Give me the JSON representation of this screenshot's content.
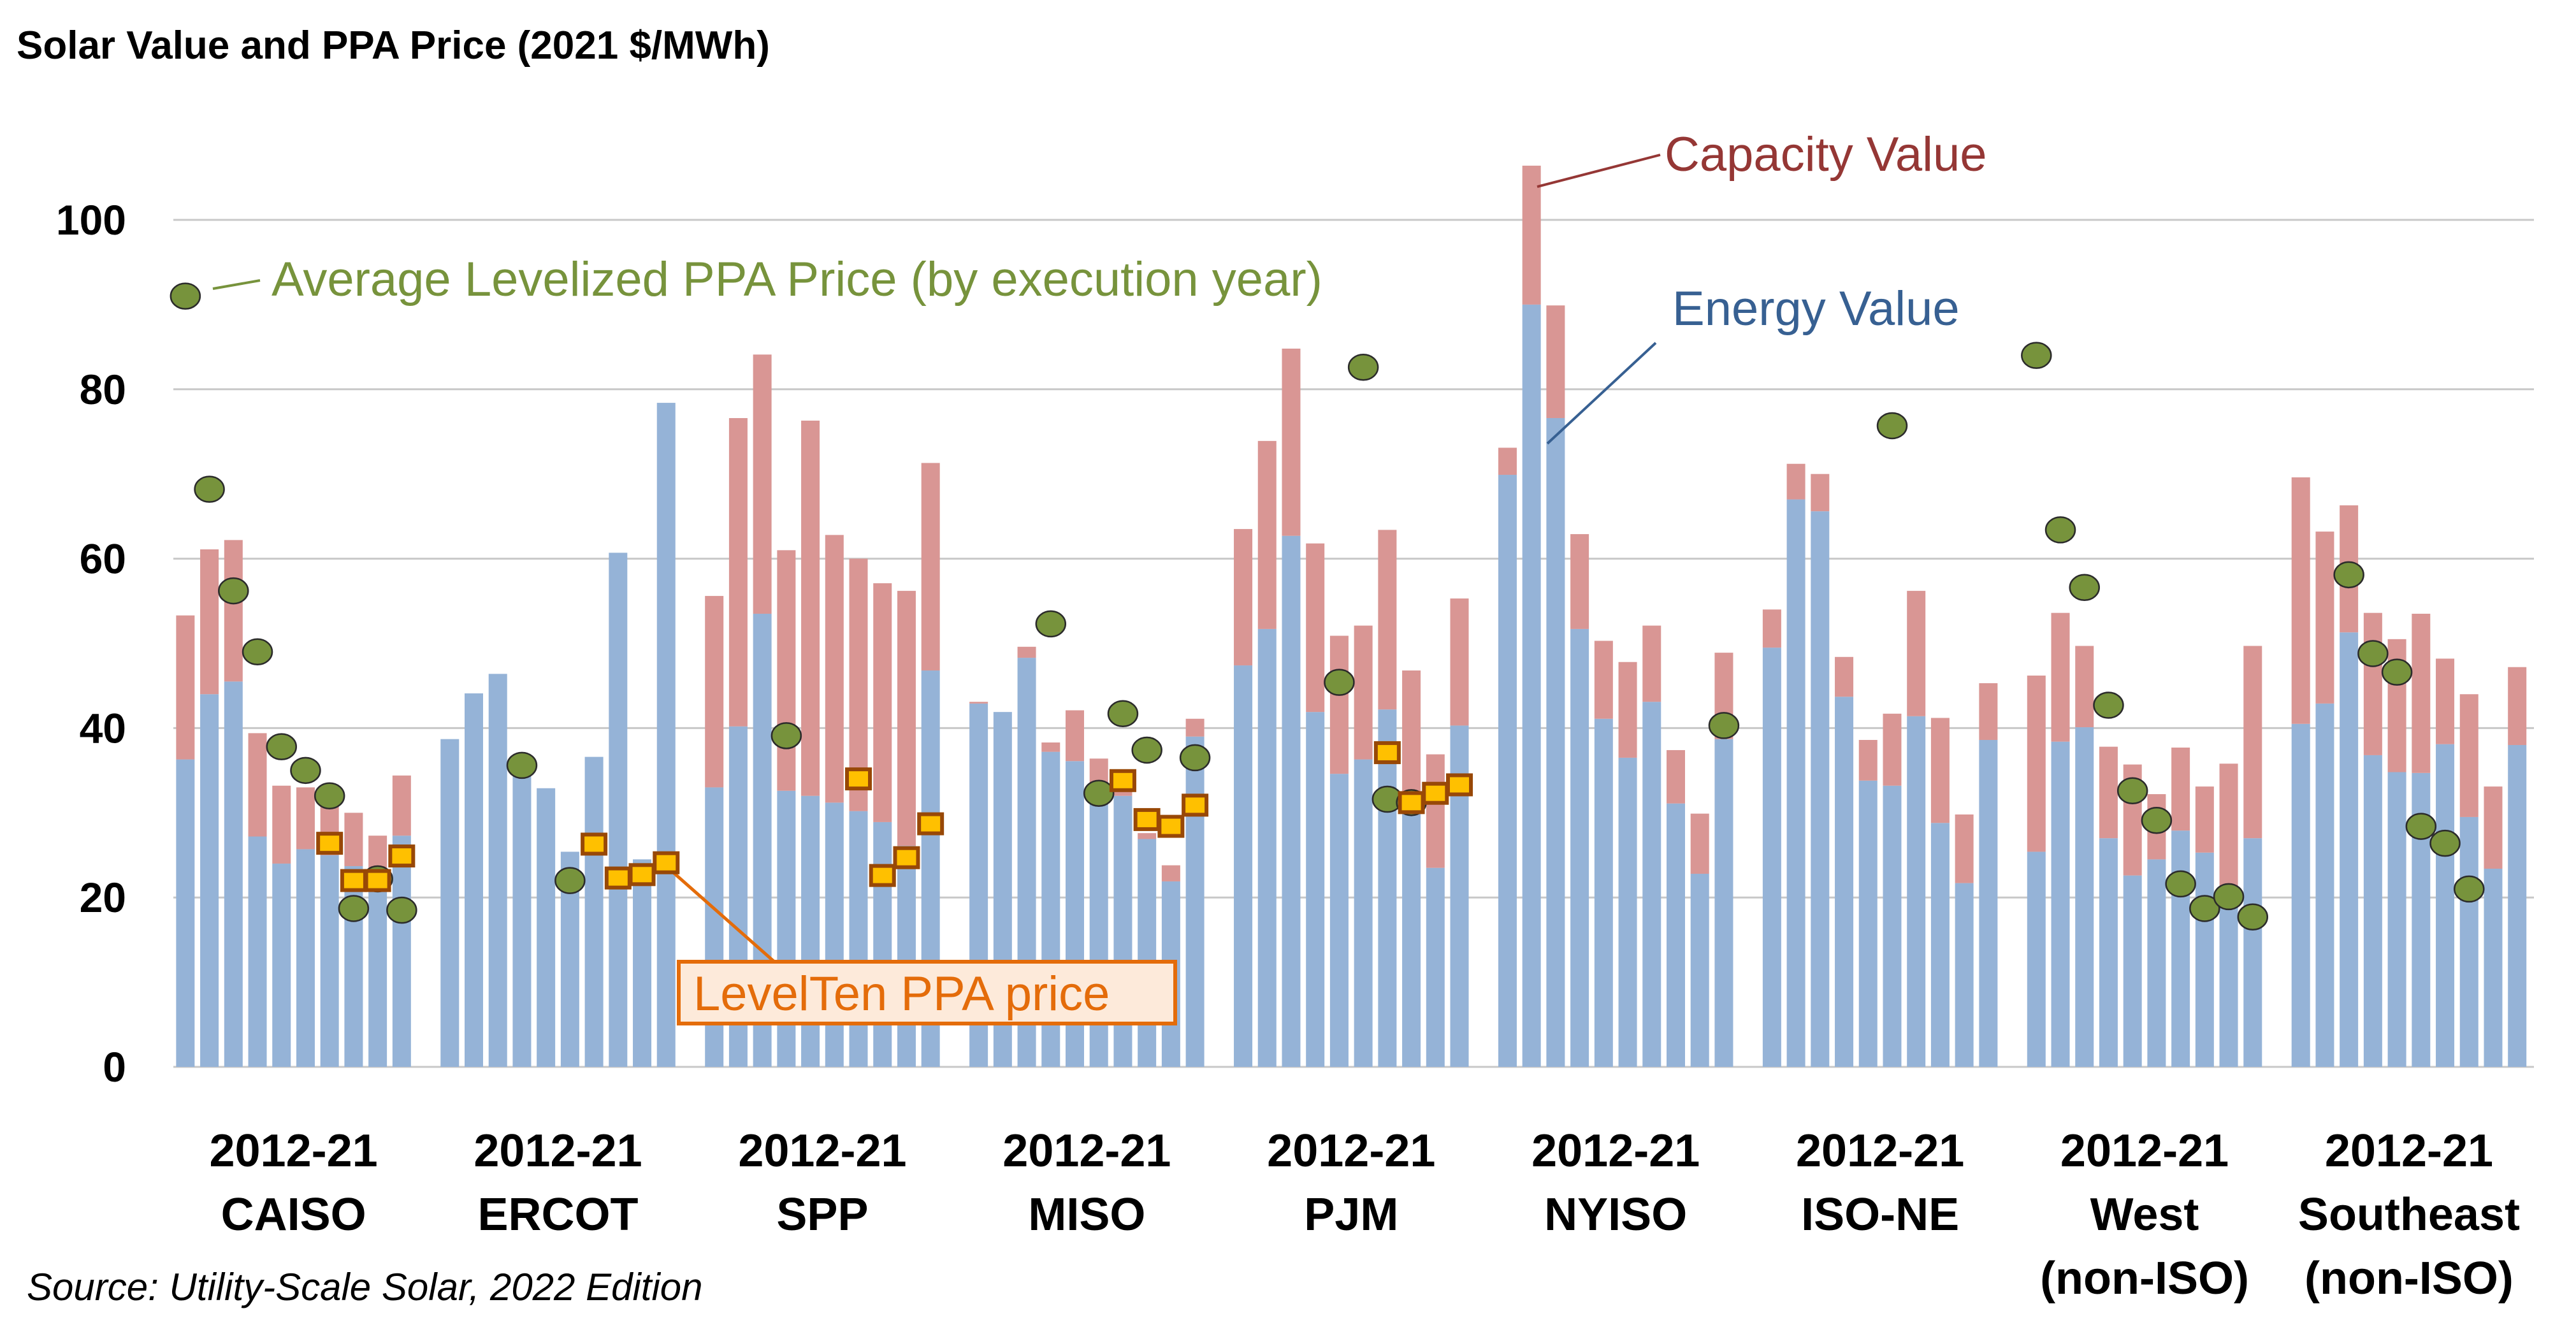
{
  "chart_data": {
    "type": "bar",
    "title": "Solar Value and PPA Price (2021 $/MWh)",
    "source": "Source: Utility-Scale Solar, 2022 Edition",
    "ylim": [
      0,
      110
    ],
    "yticks": [
      "0",
      "20",
      "40",
      "60",
      "80",
      "100"
    ],
    "ytick_values": [
      0,
      20,
      40,
      60,
      80,
      100
    ],
    "grid": true,
    "years": [
      2012,
      2013,
      2014,
      2015,
      2016,
      2017,
      2018,
      2019,
      2020,
      2021
    ],
    "colors": {
      "energy": "#95B3D7",
      "capacity": "#D99694",
      "ppa": "#77933C",
      "levelten_fill": "#FFC000",
      "levelten_border": "#984807",
      "capacity_label": "#953735",
      "energy_label": "#376092",
      "ppa_label": "#77933C",
      "levelten_label": "#E46C0A"
    },
    "annotations": {
      "capacity": "Capacity Value",
      "energy": "Energy Value",
      "ppa": "Average Levelized PPA Price (by execution year)",
      "levelten": "LevelTen PPA price"
    },
    "groups": [
      {
        "label1": "2012-21",
        "label2": "CAISO",
        "label3": "",
        "energy_value": [
          36.3,
          44.0,
          45.5,
          27.2,
          24.0,
          25.7,
          25.0,
          23.7,
          21.0,
          27.3
        ],
        "capacity_value": [
          17.0,
          17.1,
          16.7,
          12.2,
          9.2,
          7.3,
          6.0,
          6.3,
          6.3,
          7.1
        ],
        "ppa_price": [
          91.0,
          68.2,
          56.2,
          49.0,
          37.8,
          35.0,
          32.0,
          18.7,
          22.2,
          18.5
        ],
        "levelten_price": [
          null,
          null,
          null,
          null,
          null,
          null,
          26.4,
          22.0,
          22.0,
          24.9
        ]
      },
      {
        "label1": "2012-21",
        "label2": "ERCOT",
        "label3": "",
        "energy_value": [
          38.7,
          44.1,
          46.4,
          34.3,
          32.9,
          25.4,
          36.6,
          60.7,
          24.5,
          78.4
        ],
        "capacity_value": [
          0,
          0,
          0,
          0,
          0,
          0,
          0,
          0,
          0,
          0
        ],
        "ppa_price": [
          null,
          null,
          null,
          35.6,
          null,
          22.0,
          null,
          null,
          null,
          null
        ],
        "levelten_price": [
          null,
          null,
          null,
          null,
          null,
          null,
          26.3,
          22.3,
          22.7,
          24.1
        ]
      },
      {
        "label1": "2012-21",
        "label2": "SPP",
        "label3": "",
        "energy_value": [
          33.0,
          40.2,
          53.5,
          32.6,
          32.0,
          31.2,
          30.2,
          28.9,
          26.1,
          46.8
        ],
        "capacity_value": [
          22.6,
          36.4,
          30.6,
          28.4,
          44.3,
          31.6,
          29.8,
          28.2,
          30.1,
          24.5
        ],
        "ppa_price": [
          null,
          null,
          null,
          39.1,
          null,
          null,
          null,
          null,
          null,
          null
        ],
        "levelten_price": [
          null,
          null,
          null,
          null,
          null,
          null,
          34.0,
          22.6,
          24.7,
          28.7
        ]
      },
      {
        "label1": "2012-21",
        "label2": "MISO",
        "label3": "",
        "energy_value": [
          42.9,
          41.9,
          48.3,
          37.2,
          36.1,
          33.5,
          32.0,
          26.9,
          21.9,
          39.0
        ],
        "capacity_value": [
          0.2,
          0,
          1.3,
          1.1,
          6.0,
          2.9,
          3.0,
          0.7,
          1.9,
          2.1
        ],
        "ppa_price": [
          null,
          null,
          null,
          52.3,
          null,
          32.3,
          41.7,
          37.4,
          null,
          36.5
        ],
        "levelten_price": [
          null,
          null,
          null,
          null,
          null,
          null,
          33.8,
          29.2,
          28.4,
          30.9
        ]
      },
      {
        "label1": "2012-21",
        "label2": "PJM",
        "label3": "",
        "energy_value": [
          47.4,
          51.7,
          62.7,
          41.9,
          34.6,
          36.3,
          42.2,
          31.1,
          23.5,
          40.3
        ],
        "capacity_value": [
          16.1,
          22.2,
          22.1,
          19.9,
          16.3,
          15.8,
          21.2,
          15.7,
          13.4,
          15.0
        ],
        "ppa_price": [
          null,
          null,
          null,
          null,
          45.4,
          82.6,
          31.6,
          31.2,
          null,
          null
        ],
        "levelten_price": [
          null,
          null,
          null,
          null,
          null,
          null,
          37.1,
          31.2,
          32.3,
          33.3
        ]
      },
      {
        "label1": "2012-21",
        "label2": "NYISO",
        "label3": "",
        "energy_value": [
          69.9,
          90.0,
          76.6,
          51.7,
          41.1,
          36.5,
          43.1,
          31.1,
          22.8,
          38.7
        ],
        "capacity_value": [
          3.2,
          16.4,
          13.3,
          11.2,
          9.2,
          11.3,
          9.0,
          6.3,
          7.1,
          10.2
        ],
        "ppa_price": [
          null,
          null,
          null,
          null,
          null,
          null,
          null,
          null,
          null,
          40.3
        ],
        "levelten_price": [
          null,
          null,
          null,
          null,
          null,
          null,
          null,
          null,
          null,
          null
        ]
      },
      {
        "label1": "2012-21",
        "label2": "ISO-NE",
        "label3": "",
        "energy_value": [
          49.5,
          67.0,
          65.6,
          43.7,
          33.8,
          33.2,
          41.4,
          28.8,
          21.7,
          38.6
        ],
        "capacity_value": [
          4.5,
          4.2,
          4.4,
          4.7,
          4.8,
          8.5,
          14.8,
          12.4,
          8.1,
          6.7
        ],
        "ppa_price": [
          null,
          null,
          null,
          null,
          null,
          75.7,
          null,
          null,
          null,
          null
        ],
        "levelten_price": [
          null,
          null,
          null,
          null,
          null,
          null,
          null,
          null,
          null,
          null
        ]
      },
      {
        "label1": "2012-21",
        "label2": "West",
        "label3": "(non-ISO)",
        "energy_value": [
          25.4,
          38.4,
          40.1,
          27.0,
          22.6,
          24.5,
          27.9,
          25.3,
          19.5,
          27.0
        ],
        "capacity_value": [
          20.8,
          15.2,
          9.6,
          10.8,
          13.1,
          7.7,
          9.8,
          7.8,
          16.3,
          22.7
        ],
        "ppa_price": [
          84.0,
          63.4,
          56.6,
          42.7,
          32.6,
          29.1,
          21.6,
          18.7,
          20.1,
          17.7
        ],
        "levelten_price": [
          null,
          null,
          null,
          null,
          null,
          null,
          null,
          null,
          null,
          null
        ]
      },
      {
        "label1": "2012-21",
        "label2": "Southeast",
        "label3": "(non-ISO)",
        "energy_value": [
          40.5,
          42.9,
          51.3,
          36.8,
          34.8,
          34.7,
          38.1,
          29.5,
          23.4,
          38.0
        ],
        "capacity_value": [
          29.1,
          20.3,
          15.0,
          16.8,
          15.7,
          18.8,
          10.1,
          14.5,
          9.7,
          9.2
        ],
        "ppa_price": [
          null,
          null,
          58.1,
          48.8,
          46.6,
          28.4,
          26.4,
          21.0,
          null,
          null
        ],
        "levelten_price": [
          null,
          null,
          null,
          null,
          null,
          null,
          null,
          null,
          null,
          null
        ]
      }
    ]
  }
}
